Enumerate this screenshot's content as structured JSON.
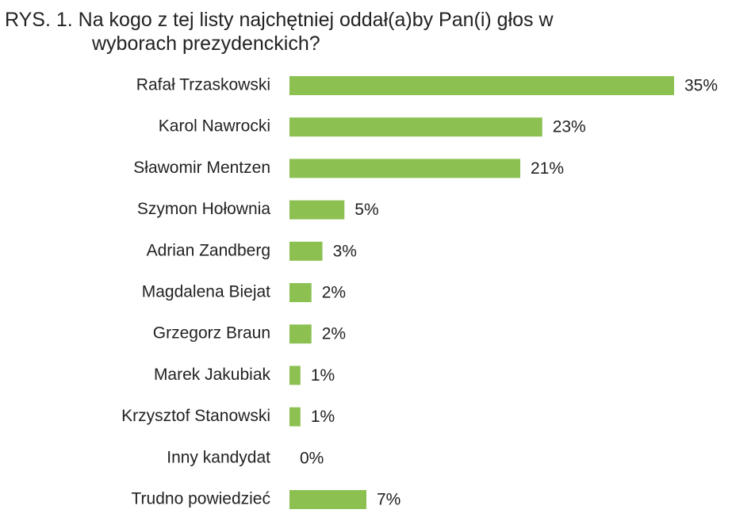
{
  "chart_data": {
    "type": "bar",
    "orientation": "horizontal",
    "title": "RYS. 1. Na kogo z tej listy najchętniej oddał(a)by Pan(i) głos w wyborach prezydenckich?",
    "categories": [
      "Rafał Trzaskowski",
      "Karol Nawrocki",
      "Sławomir Mentzen",
      "Szymon Hołownia",
      "Adrian Zandberg",
      "Magdalena Biejat",
      "Grzegorz Braun",
      "Marek Jakubiak",
      "Krzysztof Stanowski",
      "Inny kandydat",
      "Trudno powiedzieć"
    ],
    "values": [
      35,
      23,
      21,
      5,
      3,
      2,
      2,
      1,
      1,
      0,
      7
    ],
    "value_labels": [
      "35%",
      "23%",
      "21%",
      "5%",
      "3%",
      "2%",
      "2%",
      "1%",
      "1%",
      "0%",
      "7%"
    ],
    "color": "#8cc152"
  }
}
